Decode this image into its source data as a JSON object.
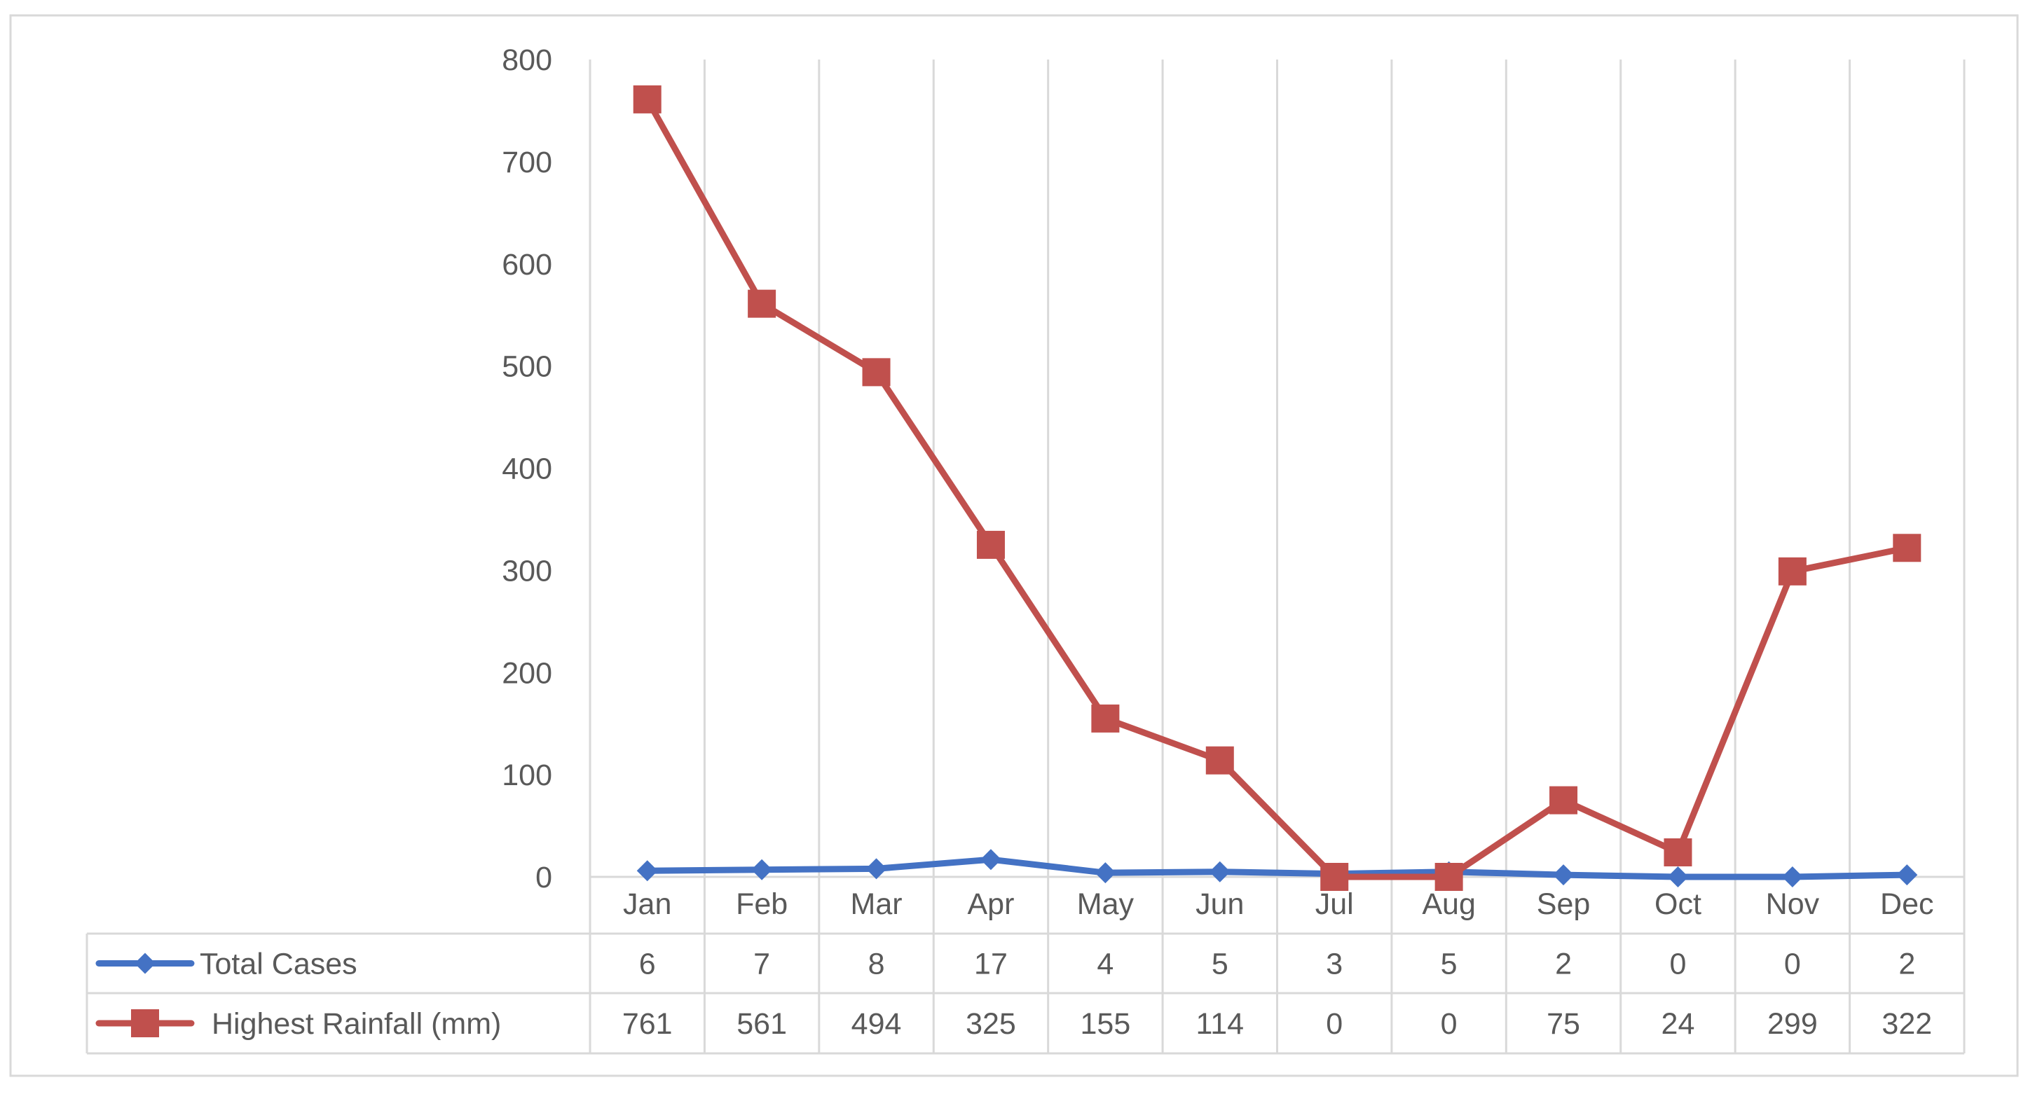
{
  "chart_data": {
    "type": "line",
    "title": "",
    "xlabel": "",
    "ylabel": "",
    "categories": [
      "Jan",
      "Feb",
      "Mar",
      "Apr",
      "May",
      "Jun",
      "Jul",
      "Aug",
      "Sep",
      "Oct",
      "Nov",
      "Dec"
    ],
    "ylim": [
      0,
      800
    ],
    "yticks": [
      "0",
      "100",
      "200",
      "300",
      "400",
      "500",
      "600",
      "700",
      "800"
    ],
    "grid": "vertical",
    "legend": "data-table",
    "series": [
      {
        "name": "Total Cases",
        "color": "#4472C4",
        "marker": "diamond",
        "values": [
          6,
          7,
          8,
          17,
          4,
          5,
          3,
          5,
          2,
          0,
          0,
          2
        ],
        "labels": [
          "6",
          "7",
          "8",
          "17",
          "4",
          "5",
          "3",
          "5",
          "2",
          "0",
          "0",
          "2"
        ]
      },
      {
        "name": "Highest Rainfall (mm)",
        "color": "#C0504D",
        "marker": "square",
        "values": [
          761,
          561,
          494,
          325,
          155,
          114,
          0,
          0,
          75,
          24,
          299,
          322
        ],
        "labels": [
          "761",
          "561",
          "494",
          "325",
          "155",
          "114",
          "0",
          "0",
          "75",
          "24",
          "299",
          "322"
        ]
      }
    ]
  }
}
